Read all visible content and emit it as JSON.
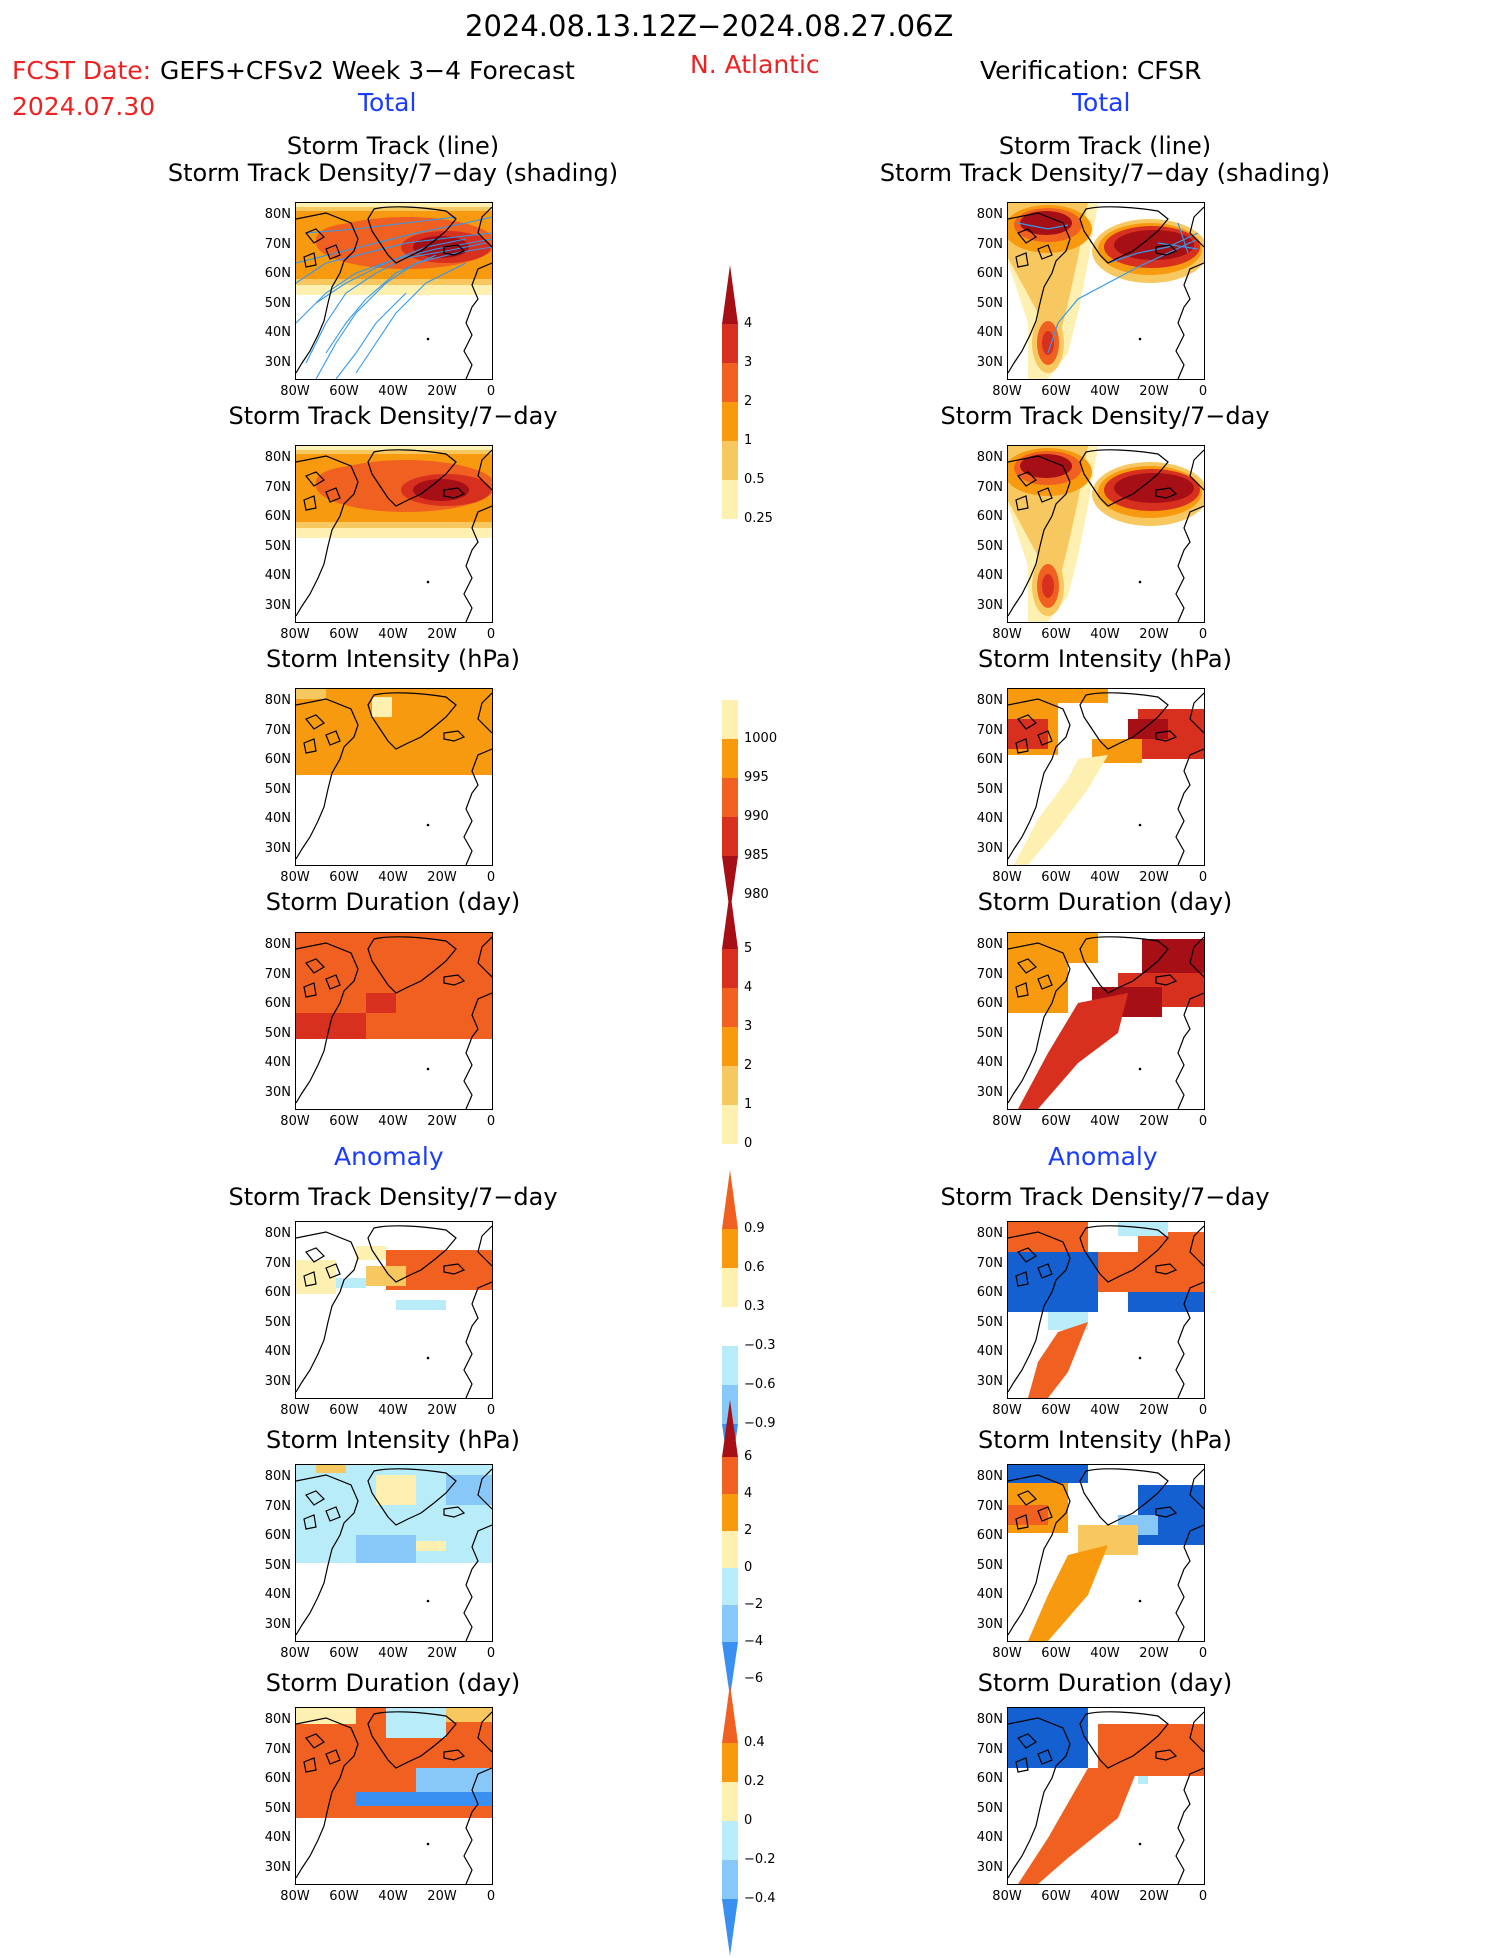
{
  "header": {
    "date_range": "2024.08.13.12Z−2024.08.27.06Z",
    "fcst_date_label": "FCST Date:",
    "fcst_date": "2024.07.30",
    "forecast_title": "GEFS+CFSv2 Week 3−4 Forecast",
    "region": "N. Atlantic",
    "verification": "Verification: CFSR",
    "total_left": "Total",
    "total_right": "Total",
    "anomaly_left": "Anomaly",
    "anomaly_right": "Anomaly"
  },
  "panels": {
    "track_line": "Storm Track (line)",
    "track_shading": "Storm Track Density/7−day (shading)",
    "track_density": "Storm Track Density/7−day",
    "intensity": "Storm Intensity (hPa)",
    "duration": "Storm Duration (day)"
  },
  "axes": {
    "lat_ticks": [
      "80N",
      "70N",
      "60N",
      "50N",
      "40N",
      "30N"
    ],
    "lon_ticks": [
      "80W",
      "60W",
      "40W",
      "20W",
      "0"
    ]
  },
  "colorbars": {
    "density_total": [
      "4",
      "3",
      "2",
      "1",
      "0.5",
      "0.25"
    ],
    "intensity_total": [
      "1000",
      "995",
      "990",
      "985",
      "980"
    ],
    "duration_total": [
      "5",
      "4",
      "3",
      "2",
      "1",
      "0"
    ],
    "density_anom": [
      "0.9",
      "0.6",
      "0.3",
      "−0.3",
      "−0.6",
      "−0.9"
    ],
    "intensity_anom": [
      "6",
      "4",
      "2",
      "0",
      "−2",
      "−4",
      "−6"
    ],
    "duration_anom": [
      "0.4",
      "0.2",
      "0",
      "−0.2",
      "−0.4"
    ]
  },
  "colors": {
    "dark_red": "#a50f15",
    "red": "#d7301f",
    "orange_red": "#f06020",
    "orange": "#f89a10",
    "light_orange": "#f8c860",
    "pale_yellow": "#fdf0b0",
    "pale_blue": "#b8ecf8",
    "light_blue": "#88c8f8",
    "mid_blue": "#3a90f0",
    "dark_blue": "#1560d0",
    "track_blue": "#3399ee"
  }
}
